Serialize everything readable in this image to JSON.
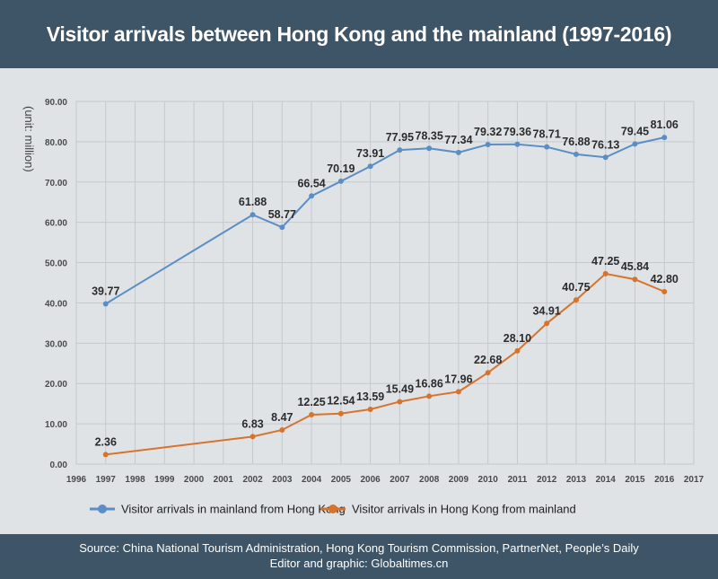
{
  "header": {
    "title": "Visitor arrivals between Hong Kong and the mainland (1997-2016)"
  },
  "footer": {
    "source": "Source: China National Tourism Administration, Hong Kong Tourism Commission, PartnerNet, People’s Daily",
    "credit": "Editor and graphic: Globaltimes.cn"
  },
  "chart_data": {
    "type": "line",
    "title": "Visitor arrivals between Hong Kong and the mainland (1997-2016)",
    "xlabel": "",
    "ylabel": "(unit: million)",
    "xlim": [
      1996,
      2017
    ],
    "ylim": [
      0,
      90
    ],
    "x_ticks": [
      "1996",
      "1997",
      "1998",
      "1999",
      "2000",
      "2001",
      "2002",
      "2003",
      "2004",
      "2005",
      "2006",
      "2007",
      "2008",
      "2009",
      "2010",
      "2011",
      "2012",
      "2013",
      "2014",
      "2015",
      "2016",
      "2017"
    ],
    "y_ticks": [
      "0.00",
      "10.00",
      "20.00",
      "30.00",
      "40.00",
      "50.00",
      "60.00",
      "70.00",
      "80.00",
      "90.00"
    ],
    "grid": true,
    "legend_position": "bottom",
    "x": [
      1997,
      2002,
      2003,
      2004,
      2005,
      2006,
      2007,
      2008,
      2009,
      2010,
      2011,
      2012,
      2013,
      2014,
      2015,
      2016
    ],
    "series": [
      {
        "name": "Visitor arrivals in mainland from Hong Kong",
        "color": "#5b8ec4",
        "values": [
          39.77,
          61.88,
          58.77,
          66.54,
          70.19,
          73.91,
          77.95,
          78.35,
          77.34,
          79.32,
          79.36,
          78.71,
          76.88,
          76.13,
          79.45,
          81.06
        ],
        "labels": [
          "39.77",
          "61.88",
          "58.77",
          "66.54",
          "70.19",
          "73.91",
          "77.95",
          "78.35",
          "77.34",
          "79.32",
          "79.36",
          "78.71",
          "76.88",
          "76.13",
          "79.45",
          "81.06"
        ]
      },
      {
        "name": "Visitor arrivals in Hong Kong from mainland",
        "color": "#d8732c",
        "values": [
          2.36,
          6.83,
          8.47,
          12.25,
          12.54,
          13.59,
          15.49,
          16.86,
          17.96,
          22.68,
          28.1,
          34.91,
          40.75,
          47.25,
          45.84,
          42.8
        ],
        "labels": [
          "2.36",
          "6.83",
          "8.47",
          "12.25",
          "12.54",
          "13.59",
          "15.49",
          "16.86",
          "17.96",
          "22.68",
          "28.10",
          "34.91",
          "40.75",
          "47.25",
          "45.84",
          "42.80"
        ]
      }
    ]
  }
}
